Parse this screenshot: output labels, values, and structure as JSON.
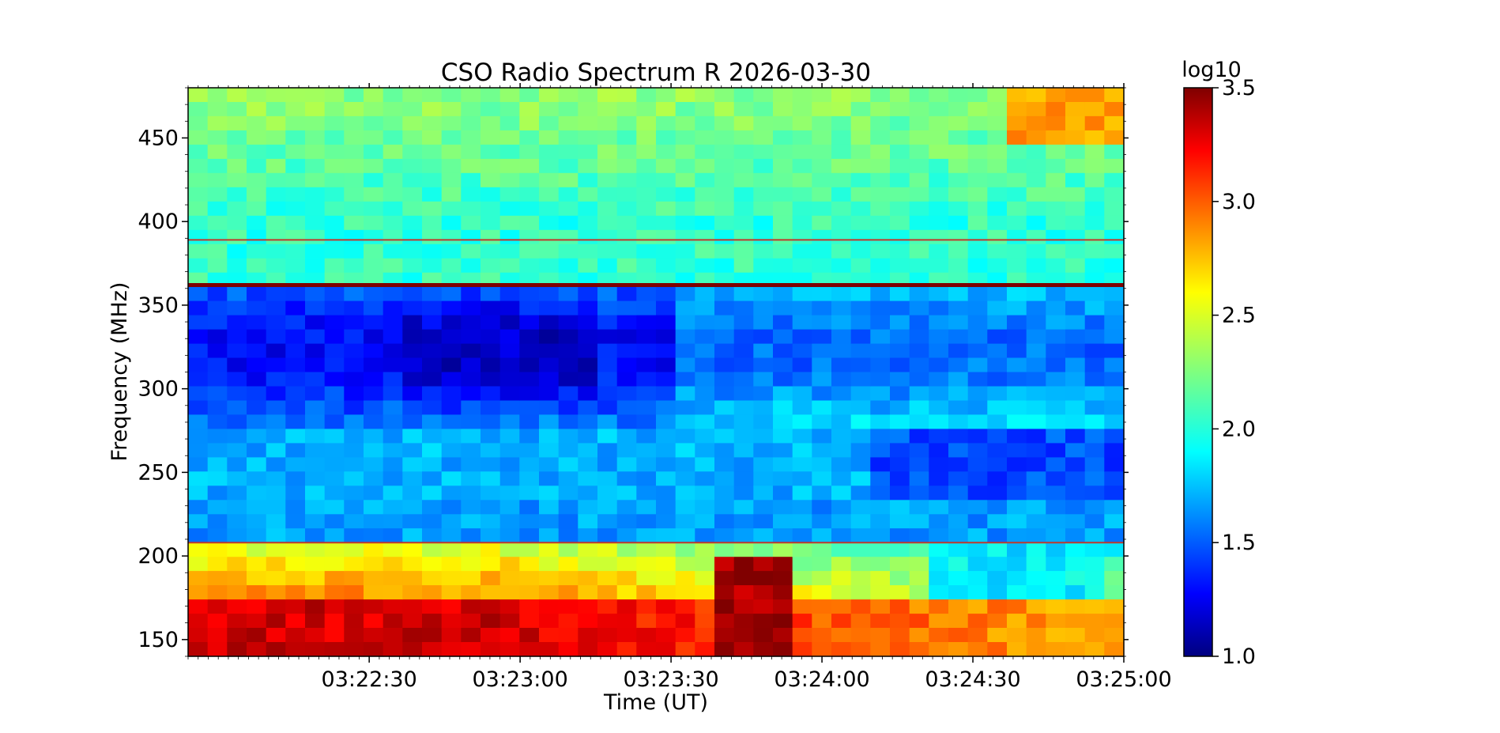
{
  "chart_data": {
    "type": "heatmap",
    "title": "CSO Radio Spectrum R 2026-03-30",
    "xlabel": "Time (UT)",
    "ylabel": "Frequency (MHz)",
    "x_ticks": [
      "03:22:30",
      "03:23:00",
      "03:23:30",
      "03:24:00",
      "03:24:30",
      "03:25:00"
    ],
    "x_range_seconds_from_03_22_00": [
      -6,
      180
    ],
    "y_ticks": [
      150,
      200,
      250,
      300,
      350,
      400,
      450
    ],
    "ylim": [
      140,
      480
    ],
    "colorbar": {
      "label": "log10",
      "ticks": [
        "1.0",
        "1.5",
        "2.0",
        "2.5",
        "3.0",
        "3.5"
      ],
      "range": [
        1.0,
        3.5
      ],
      "colormap": "jet"
    },
    "features": {
      "low_frequency_emission": {
        "freq_range": [
          140,
          205
        ],
        "level_log10": [
          2.6,
          3.5
        ],
        "strongest_before": "03:23:00"
      },
      "persistent_rfi_lines_mhz": [
        362,
        389,
        208
      ],
      "depressed_band": {
        "freq_range": [
          280,
          365
        ],
        "level_log10": [
          1.2,
          1.7
        ]
      },
      "upper_band_level_log10": [
        1.9,
        2.4
      ],
      "bright_corner": {
        "freq_range": [
          445,
          480
        ],
        "time": "03:24:35-03:25:00",
        "level_log10": 2.8
      }
    }
  },
  "colors": {
    "jet": [
      "#00007f",
      "#0000ff",
      "#007fff",
      "#00ffff",
      "#7fff7f",
      "#ffff00",
      "#ff7f00",
      "#ff0000",
      "#7f0000"
    ]
  }
}
